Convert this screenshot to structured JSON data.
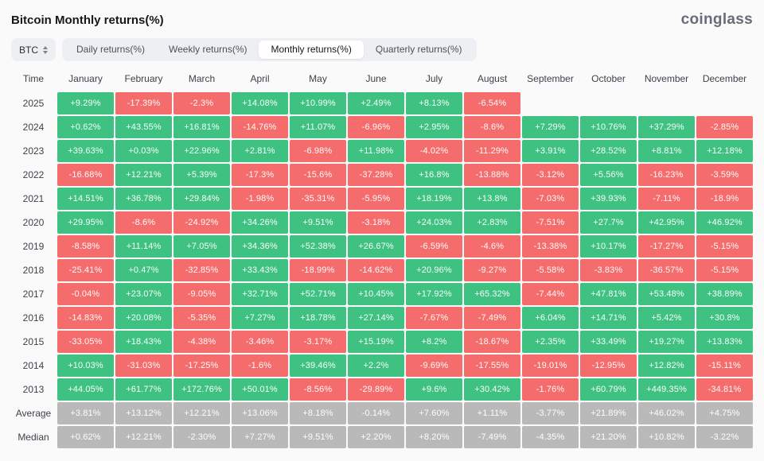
{
  "header": {
    "title": "Bitcoin Monthly returns(%)",
    "logo": "coinglass"
  },
  "controls": {
    "symbol_selector": {
      "label": "BTC",
      "icon": "sort-arrows-icon"
    },
    "tabs": [
      {
        "label": "Daily returns(%)",
        "active": false
      },
      {
        "label": "Weekly returns(%)",
        "active": false
      },
      {
        "label": "Monthly returns(%)",
        "active": true
      },
      {
        "label": "Quarterly returns(%)",
        "active": false
      }
    ]
  },
  "colors": {
    "positive": "#3ec181",
    "negative": "#f56c6c",
    "neutral": "#b9b9b9",
    "background": "#fafafa"
  },
  "chart_data": {
    "type": "heatmap",
    "title": "Bitcoin Monthly returns(%)",
    "time_header": "Time",
    "months": [
      "January",
      "February",
      "March",
      "April",
      "May",
      "June",
      "July",
      "August",
      "September",
      "October",
      "November",
      "December"
    ],
    "rows": [
      {
        "label": "2025",
        "kind": "year",
        "cells": [
          "+9.29%",
          "-17.39%",
          "-2.3%",
          "+14.08%",
          "+10.99%",
          "+2.49%",
          "+8.13%",
          "-6.54%",
          "",
          "",
          "",
          ""
        ]
      },
      {
        "label": "2024",
        "kind": "year",
        "cells": [
          "+0.62%",
          "+43.55%",
          "+16.81%",
          "-14.76%",
          "+11.07%",
          "-6.96%",
          "+2.95%",
          "-8.6%",
          "+7.29%",
          "+10.76%",
          "+37.29%",
          "-2.85%"
        ]
      },
      {
        "label": "2023",
        "kind": "year",
        "cells": [
          "+39.63%",
          "+0.03%",
          "+22.96%",
          "+2.81%",
          "-6.98%",
          "+11.98%",
          "-4.02%",
          "-11.29%",
          "+3.91%",
          "+28.52%",
          "+8.81%",
          "+12.18%"
        ]
      },
      {
        "label": "2022",
        "kind": "year",
        "cells": [
          "-16.68%",
          "+12.21%",
          "+5.39%",
          "-17.3%",
          "-15.6%",
          "-37.28%",
          "+16.8%",
          "-13.88%",
          "-3.12%",
          "+5.56%",
          "-16.23%",
          "-3.59%"
        ]
      },
      {
        "label": "2021",
        "kind": "year",
        "cells": [
          "+14.51%",
          "+36.78%",
          "+29.84%",
          "-1.98%",
          "-35.31%",
          "-5.95%",
          "+18.19%",
          "+13.8%",
          "-7.03%",
          "+39.93%",
          "-7.11%",
          "-18.9%"
        ]
      },
      {
        "label": "2020",
        "kind": "year",
        "cells": [
          "+29.95%",
          "-8.6%",
          "-24.92%",
          "+34.26%",
          "+9.51%",
          "-3.18%",
          "+24.03%",
          "+2.83%",
          "-7.51%",
          "+27.7%",
          "+42.95%",
          "+46.92%"
        ]
      },
      {
        "label": "2019",
        "kind": "year",
        "cells": [
          "-8.58%",
          "+11.14%",
          "+7.05%",
          "+34.36%",
          "+52.38%",
          "+26.67%",
          "-6.59%",
          "-4.6%",
          "-13.38%",
          "+10.17%",
          "-17.27%",
          "-5.15%"
        ]
      },
      {
        "label": "2018",
        "kind": "year",
        "cells": [
          "-25.41%",
          "+0.47%",
          "-32.85%",
          "+33.43%",
          "-18.99%",
          "-14.62%",
          "+20.96%",
          "-9.27%",
          "-5.58%",
          "-3.83%",
          "-36.57%",
          "-5.15%"
        ]
      },
      {
        "label": "2017",
        "kind": "year",
        "cells": [
          "-0.04%",
          "+23.07%",
          "-9.05%",
          "+32.71%",
          "+52.71%",
          "+10.45%",
          "+17.92%",
          "+65.32%",
          "-7.44%",
          "+47.81%",
          "+53.48%",
          "+38.89%"
        ]
      },
      {
        "label": "2016",
        "kind": "year",
        "cells": [
          "-14.83%",
          "+20.08%",
          "-5.35%",
          "+7.27%",
          "+18.78%",
          "+27.14%",
          "-7.67%",
          "-7.49%",
          "+6.04%",
          "+14.71%",
          "+5.42%",
          "+30.8%"
        ]
      },
      {
        "label": "2015",
        "kind": "year",
        "cells": [
          "-33.05%",
          "+18.43%",
          "-4.38%",
          "-3.46%",
          "-3.17%",
          "+15.19%",
          "+8.2%",
          "-18.67%",
          "+2.35%",
          "+33.49%",
          "+19.27%",
          "+13.83%"
        ]
      },
      {
        "label": "2014",
        "kind": "year",
        "cells": [
          "+10.03%",
          "-31.03%",
          "-17.25%",
          "-1.6%",
          "+39.46%",
          "+2.2%",
          "-9.69%",
          "-17.55%",
          "-19.01%",
          "-12.95%",
          "+12.82%",
          "-15.11%"
        ]
      },
      {
        "label": "2013",
        "kind": "year",
        "cells": [
          "+44.05%",
          "+61.77%",
          "+172.76%",
          "+50.01%",
          "-8.56%",
          "-29.89%",
          "+9.6%",
          "+30.42%",
          "-1.76%",
          "+60.79%",
          "+449.35%",
          "-34.81%"
        ]
      },
      {
        "label": "Average",
        "kind": "stat",
        "cells": [
          "+3.81%",
          "+13.12%",
          "+12.21%",
          "+13.06%",
          "+8.18%",
          "-0.14%",
          "+7.60%",
          "+1.11%",
          "-3.77%",
          "+21.89%",
          "+46.02%",
          "+4.75%"
        ]
      },
      {
        "label": "Median",
        "kind": "stat",
        "cells": [
          "+0.62%",
          "+12.21%",
          "-2.30%",
          "+7.27%",
          "+9.51%",
          "+2.20%",
          "+8.20%",
          "-7.49%",
          "-4.35%",
          "+21.20%",
          "+10.82%",
          "-3.22%"
        ]
      }
    ]
  }
}
